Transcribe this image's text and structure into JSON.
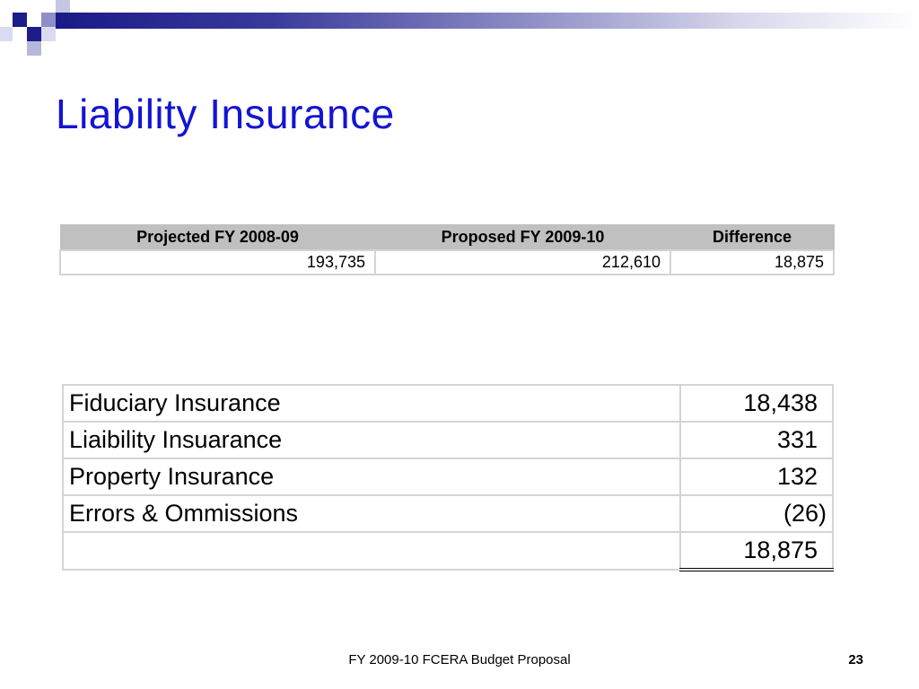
{
  "slide": {
    "title": "Liability Insurance",
    "footer": "FY 2009-10 FCERA Budget Proposal",
    "page_number": "23",
    "accent_color": "#1414d4"
  },
  "summary_table": {
    "headers": [
      "Projected FY 2008-09",
      "Proposed FY 2009-10",
      "Difference"
    ],
    "row": [
      "193,735",
      "212,610",
      "18,875"
    ]
  },
  "detail_table": {
    "rows": [
      {
        "label": "Fiduciary Insurance",
        "value": "18,438"
      },
      {
        "label": "Liaibility Insuarance",
        "value": "331"
      },
      {
        "label": "Property Insurance",
        "value": "132"
      },
      {
        "label": "Errors & Ommissions",
        "value": "(26)"
      }
    ],
    "total": {
      "label": "",
      "value": "18,875"
    }
  }
}
